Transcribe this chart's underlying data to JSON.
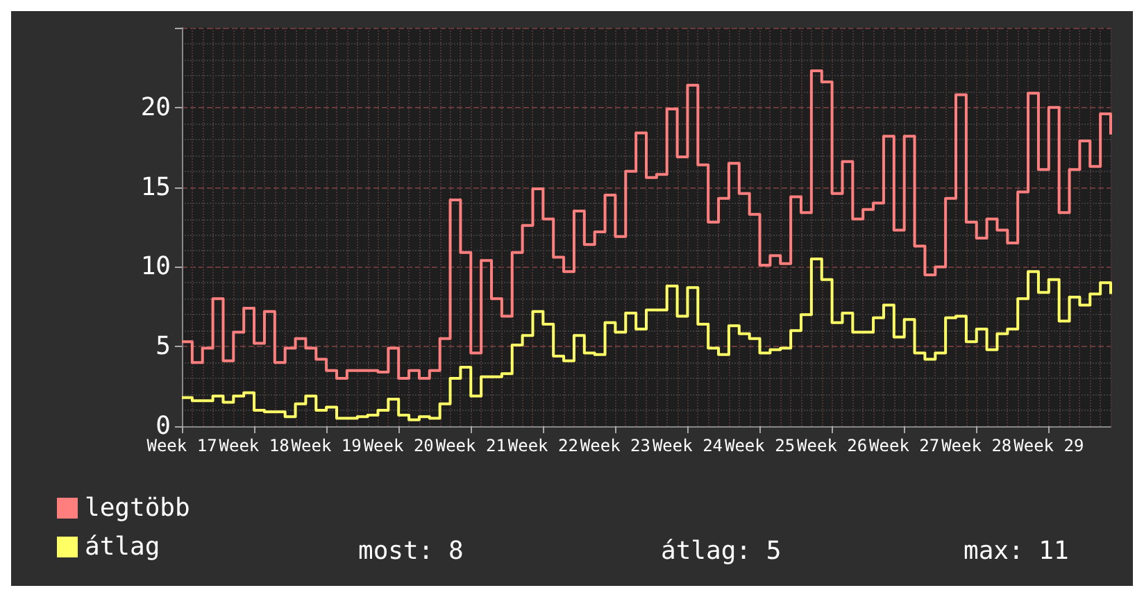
{
  "chart_data": {
    "type": "step",
    "categories": [
      "Week 17",
      null,
      null,
      null,
      null,
      null,
      null,
      "Week 18",
      null,
      null,
      null,
      null,
      null,
      null,
      "Week 19",
      null,
      null,
      null,
      null,
      null,
      null,
      "Week 20",
      null,
      null,
      null,
      null,
      null,
      null,
      "Week 21",
      null,
      null,
      null,
      null,
      null,
      null,
      "Week 22",
      null,
      null,
      null,
      null,
      null,
      null,
      "Week 23",
      null,
      null,
      null,
      null,
      null,
      null,
      "Week 24",
      null,
      null,
      null,
      null,
      null,
      null,
      "Week 25",
      null,
      null,
      null,
      null,
      null,
      null,
      "Week 26",
      null,
      null,
      null,
      null,
      null,
      null,
      "Week 27",
      null,
      null,
      null,
      null,
      null,
      null,
      "Week 28",
      null,
      null,
      null,
      null,
      null,
      null,
      "Week 29",
      null,
      null,
      null,
      null,
      null,
      null
    ],
    "series": [
      {
        "name": "legtöbb",
        "color": "#ff7f7f",
        "values": [
          5.3,
          4.0,
          4.9,
          8.0,
          4.1,
          5.9,
          7.4,
          5.2,
          7.2,
          4.0,
          4.9,
          5.5,
          4.9,
          4.2,
          3.5,
          3.0,
          3.5,
          3.5,
          3.5,
          3.4,
          4.9,
          3.0,
          3.5,
          3.0,
          3.5,
          5.5,
          14.2,
          10.9,
          4.6,
          10.4,
          8.0,
          6.9,
          10.9,
          12.6,
          14.9,
          13.0,
          10.6,
          9.7,
          13.5,
          11.4,
          12.2,
          14.5,
          11.9,
          16.0,
          18.4,
          15.6,
          15.8,
          19.9,
          16.9,
          21.4,
          16.4,
          12.8,
          14.3,
          16.5,
          14.6,
          13.3,
          10.1,
          10.7,
          10.2,
          14.4,
          13.4,
          22.3,
          21.6,
          14.6,
          16.6,
          13.0,
          13.6,
          14.0,
          18.2,
          12.3,
          18.2,
          11.3,
          9.5,
          10.0,
          14.3,
          20.8,
          12.8,
          11.8,
          13.0,
          12.3,
          11.5,
          14.7,
          20.9,
          16.1,
          20.0,
          13.4,
          16.1,
          17.9,
          16.3,
          19.6,
          18.3
        ]
      },
      {
        "name": "átlag",
        "color": "#ffff66",
        "values": [
          1.8,
          1.6,
          1.6,
          1.9,
          1.5,
          1.9,
          2.1,
          1.0,
          0.9,
          0.9,
          0.6,
          1.4,
          1.9,
          1.0,
          1.2,
          0.5,
          0.5,
          0.6,
          0.7,
          1.0,
          1.7,
          0.7,
          0.4,
          0.6,
          0.5,
          1.4,
          3.0,
          3.7,
          1.9,
          3.1,
          3.1,
          3.3,
          5.1,
          5.7,
          7.2,
          6.4,
          4.4,
          4.1,
          5.7,
          4.6,
          4.5,
          6.5,
          5.9,
          7.1,
          6.1,
          7.3,
          7.3,
          8.8,
          6.9,
          8.7,
          6.4,
          4.9,
          4.5,
          6.3,
          5.8,
          5.5,
          4.6,
          4.8,
          4.9,
          6.0,
          7.0,
          10.5,
          9.2,
          6.5,
          7.1,
          5.9,
          5.9,
          6.8,
          7.6,
          5.6,
          6.7,
          4.6,
          4.2,
          4.6,
          6.8,
          6.9,
          5.3,
          6.1,
          4.8,
          5.8,
          6.1,
          8.0,
          9.7,
          8.4,
          9.2,
          6.6,
          8.1,
          7.6,
          8.3,
          9.0,
          8.3
        ]
      }
    ],
    "ylim": [
      0,
      25
    ],
    "yticks": [
      0,
      5,
      10,
      15,
      20
    ],
    "grid": true,
    "legend": "bottom left",
    "marker": "none",
    "line_style": "solid",
    "annotations": [
      "most: 8",
      "átlag: 5",
      "max: 11"
    ]
  }
}
